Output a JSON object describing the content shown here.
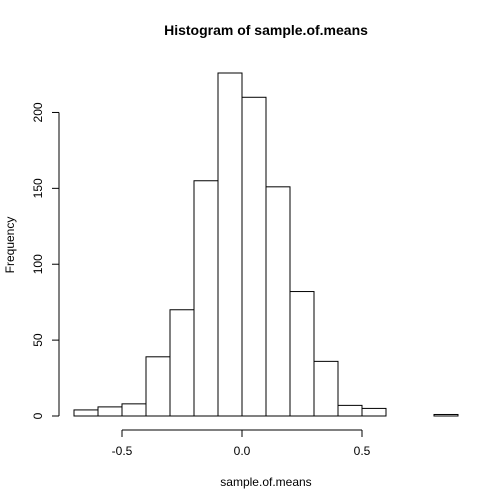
{
  "chart_data": {
    "type": "bar",
    "title": "Histogram of sample.of.means",
    "xlabel": "sample.of.means",
    "ylabel": "Frequency",
    "bins": [
      {
        "x0": -0.7,
        "x1": -0.6,
        "count": 4
      },
      {
        "x0": -0.6,
        "x1": -0.5,
        "count": 6
      },
      {
        "x0": -0.5,
        "x1": -0.4,
        "count": 8
      },
      {
        "x0": -0.4,
        "x1": -0.3,
        "count": 39
      },
      {
        "x0": -0.3,
        "x1": -0.2,
        "count": 70
      },
      {
        "x0": -0.2,
        "x1": -0.1,
        "count": 155
      },
      {
        "x0": -0.1,
        "x1": 0.0,
        "count": 226
      },
      {
        "x0": 0.0,
        "x1": 0.1,
        "count": 210
      },
      {
        "x0": 0.1,
        "x1": 0.2,
        "count": 151
      },
      {
        "x0": 0.2,
        "x1": 0.3,
        "count": 82
      },
      {
        "x0": 0.3,
        "x1": 0.4,
        "count": 36
      },
      {
        "x0": 0.4,
        "x1": 0.5,
        "count": 7
      },
      {
        "x0": 0.5,
        "x1": 0.6,
        "count": 5
      },
      {
        "x0": 0.6,
        "x1": 0.7,
        "count": 0
      },
      {
        "x0": 0.7,
        "x1": 0.8,
        "count": 0
      },
      {
        "x0": 0.8,
        "x1": 0.9,
        "count": 1
      }
    ],
    "xlim": [
      -0.7,
      0.9
    ],
    "ylim": [
      0,
      226
    ],
    "x_ticks": [
      {
        "value": -0.5,
        "label": "-0.5"
      },
      {
        "value": 0.0,
        "label": "0.0"
      },
      {
        "value": 0.5,
        "label": "0.5"
      }
    ],
    "x_axis_span": [
      -0.5,
      0.5
    ],
    "y_ticks": [
      {
        "value": 0,
        "label": "0"
      },
      {
        "value": 50,
        "label": "50"
      },
      {
        "value": 100,
        "label": "100"
      },
      {
        "value": 150,
        "label": "150"
      },
      {
        "value": 200,
        "label": "200"
      }
    ],
    "y_axis_span": [
      0,
      200
    ],
    "grid": false,
    "bar_fill": "#ffffff",
    "bar_stroke": "#000000"
  }
}
